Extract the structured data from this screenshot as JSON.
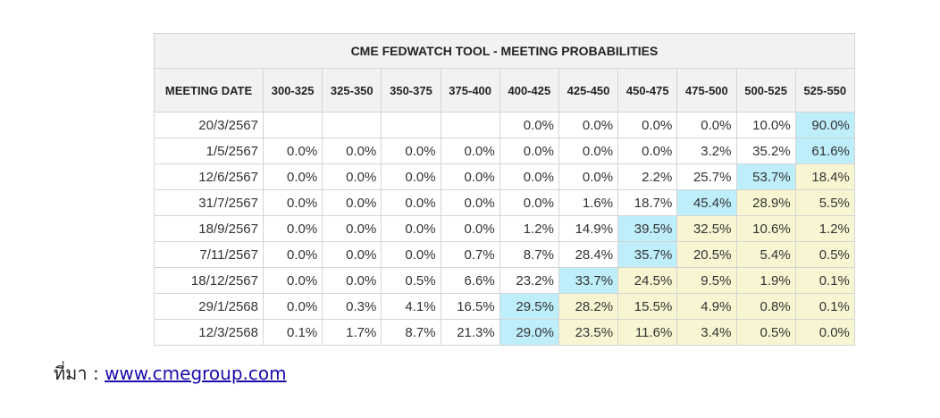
{
  "colors": {
    "highest": "#bdeefa",
    "likely": "#f8f6d2",
    "header_bg": "#f2f2f2",
    "link": "#1a0dab"
  },
  "chart_data": {
    "type": "table",
    "title": "CME FEDWATCH TOOL - MEETING PROBABILITIES",
    "first_column_header": "MEETING DATE",
    "columns": [
      "300-325",
      "325-350",
      "350-375",
      "375-400",
      "400-425",
      "425-450",
      "450-475",
      "475-500",
      "500-525",
      "525-550"
    ],
    "rows": [
      {
        "date": "20/3/2567",
        "cells": [
          "",
          "",
          "",
          "",
          "0.0%",
          "0.0%",
          "0.0%",
          "0.0%",
          "10.0%",
          "90.0%"
        ],
        "shade": [
          "",
          "",
          "",
          "",
          "",
          "",
          "",
          "",
          "",
          "hi"
        ]
      },
      {
        "date": "1/5/2567",
        "cells": [
          "0.0%",
          "0.0%",
          "0.0%",
          "0.0%",
          "0.0%",
          "0.0%",
          "0.0%",
          "3.2%",
          "35.2%",
          "61.6%"
        ],
        "shade": [
          "",
          "",
          "",
          "",
          "",
          "",
          "",
          "",
          "",
          "hi"
        ]
      },
      {
        "date": "12/6/2567",
        "cells": [
          "0.0%",
          "0.0%",
          "0.0%",
          "0.0%",
          "0.0%",
          "0.0%",
          "2.2%",
          "25.7%",
          "53.7%",
          "18.4%"
        ],
        "shade": [
          "",
          "",
          "",
          "",
          "",
          "",
          "",
          "",
          "hi",
          "lo"
        ]
      },
      {
        "date": "31/7/2567",
        "cells": [
          "0.0%",
          "0.0%",
          "0.0%",
          "0.0%",
          "0.0%",
          "1.6%",
          "18.7%",
          "45.4%",
          "28.9%",
          "5.5%"
        ],
        "shade": [
          "",
          "",
          "",
          "",
          "",
          "",
          "",
          "hi",
          "lo",
          "lo"
        ]
      },
      {
        "date": "18/9/2567",
        "cells": [
          "0.0%",
          "0.0%",
          "0.0%",
          "0.0%",
          "1.2%",
          "14.9%",
          "39.5%",
          "32.5%",
          "10.6%",
          "1.2%"
        ],
        "shade": [
          "",
          "",
          "",
          "",
          "",
          "",
          "hi",
          "lo",
          "lo",
          "lo"
        ]
      },
      {
        "date": "7/11/2567",
        "cells": [
          "0.0%",
          "0.0%",
          "0.0%",
          "0.7%",
          "8.7%",
          "28.4%",
          "35.7%",
          "20.5%",
          "5.4%",
          "0.5%"
        ],
        "shade": [
          "",
          "",
          "",
          "",
          "",
          "",
          "hi",
          "lo",
          "lo",
          "lo"
        ]
      },
      {
        "date": "18/12/2567",
        "cells": [
          "0.0%",
          "0.0%",
          "0.5%",
          "6.6%",
          "23.2%",
          "33.7%",
          "24.5%",
          "9.5%",
          "1.9%",
          "0.1%"
        ],
        "shade": [
          "",
          "",
          "",
          "",
          "",
          "hi",
          "lo",
          "lo",
          "lo",
          "lo"
        ]
      },
      {
        "date": "29/1/2568",
        "cells": [
          "0.0%",
          "0.3%",
          "4.1%",
          "16.5%",
          "29.5%",
          "28.2%",
          "15.5%",
          "4.9%",
          "0.8%",
          "0.1%"
        ],
        "shade": [
          "",
          "",
          "",
          "",
          "hi",
          "lo",
          "lo",
          "lo",
          "lo",
          "lo"
        ]
      },
      {
        "date": "12/3/2568",
        "cells": [
          "0.1%",
          "1.7%",
          "8.7%",
          "21.3%",
          "29.0%",
          "23.5%",
          "11.6%",
          "3.4%",
          "0.5%",
          "0.0%"
        ],
        "shade": [
          "",
          "",
          "",
          "",
          "hi",
          "lo",
          "lo",
          "lo",
          "lo",
          "lo"
        ]
      }
    ]
  },
  "source": {
    "label": "ที่มา :",
    "link_text": "www.cmegroup.com"
  }
}
